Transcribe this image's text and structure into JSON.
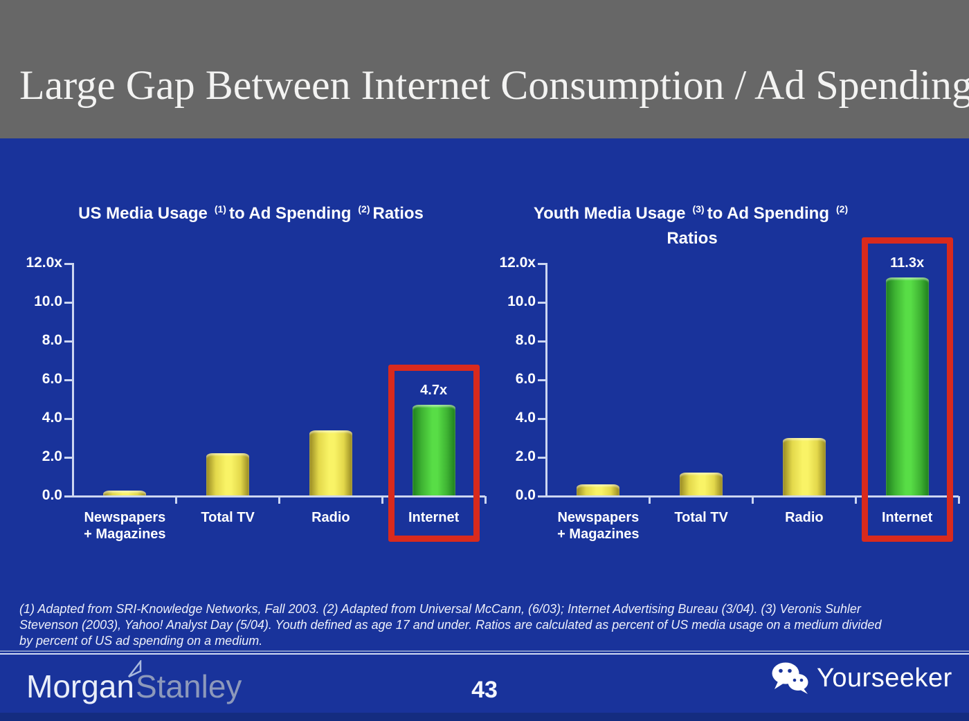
{
  "slide": {
    "title": "Large Gap Between Internet Consumption / Ad Spending",
    "page_number": "43",
    "footnote_lines": [
      "(1) Adapted from SRI-Knowledge Networks, Fall 2003.  (2) Adapted from Universal McCann, (6/03); Internet Advertising Bureau (3/04). (3) Veronis Suhler",
      "Stevenson (2003), Yahoo! Analyst Day (5/04).  Youth defined as age 17 and under.  Ratios are calculated as percent of US media usage on a medium divided",
      "by percent of US ad spending on a medium."
    ],
    "brand": {
      "word1": "Morgan",
      "word2": "Stanley"
    },
    "watermark": {
      "label": "Yourseeker",
      "icon": "wechat-icon"
    }
  },
  "colors": {
    "header_bg": "#676767",
    "slide_bg": "#19339b",
    "axis": "#ccd6f1",
    "text": "#ffffff",
    "highlight_red": "#d92a1d",
    "bar_yellow_edge": "#968821",
    "bar_yellow_mid": "#e3d84b",
    "bar_yellow_center": "#f9f366",
    "bar_green_edge": "#1e7e1e",
    "bar_green_mid": "#3fb433",
    "bar_green_center": "#58dd46"
  },
  "chart_data": [
    {
      "type": "bar",
      "title": {
        "before": "US Media Usage",
        "sup1": "(1)",
        "middle": "to Ad Spending",
        "sup2": "(2)",
        "after": "Ratios",
        "line2": ""
      },
      "title_plain": "US Media Usage (1) to Ad Spending (2) Ratios",
      "categories": [
        "Newspapers + Magazines",
        "Total TV",
        "Radio",
        "Internet"
      ],
      "category_lines": [
        [
          "Newspapers",
          "+ Magazines"
        ],
        [
          "Total TV"
        ],
        [
          "Radio"
        ],
        [
          "Internet"
        ]
      ],
      "values": [
        0.3,
        2.2,
        3.4,
        4.7
      ],
      "data_labels": [
        null,
        null,
        null,
        "4.7x"
      ],
      "highlight_index": 3,
      "ytick_labels": [
        "12.0x",
        "10.0",
        "8.0",
        "6.0",
        "4.0",
        "2.0",
        "0.0"
      ],
      "ylim": [
        0,
        12
      ],
      "grid": false,
      "legend": false
    },
    {
      "type": "bar",
      "title": {
        "before": "Youth Media Usage",
        "sup1": "(3)",
        "middle": "to Ad Spending",
        "sup2": "(2)",
        "after": "",
        "line2": "Ratios"
      },
      "title_plain": "Youth Media Usage (3) to Ad Spending (2) Ratios",
      "categories": [
        "Newspapers + Magazines",
        "Total TV",
        "Radio",
        "Internet"
      ],
      "category_lines": [
        [
          "Newspapers",
          "+ Magazines"
        ],
        [
          "Total TV"
        ],
        [
          "Radio"
        ],
        [
          "Internet"
        ]
      ],
      "values": [
        0.6,
        1.2,
        3.0,
        11.3
      ],
      "data_labels": [
        null,
        null,
        null,
        "11.3x"
      ],
      "highlight_index": 3,
      "ytick_labels": [
        "12.0x",
        "10.0",
        "8.0",
        "6.0",
        "4.0",
        "2.0",
        "0.0"
      ],
      "ylim": [
        0,
        12
      ],
      "grid": false,
      "legend": false
    }
  ]
}
